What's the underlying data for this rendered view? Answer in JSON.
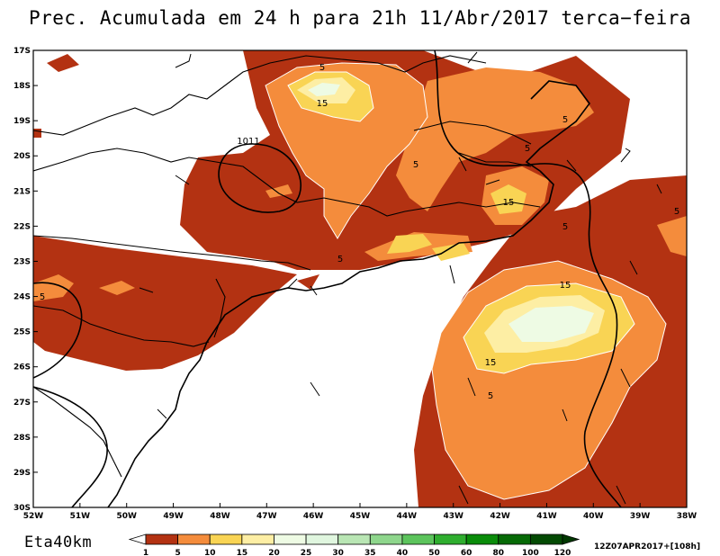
{
  "title": "Prec. Acumulada em 24 h para 21h 11/Abr/2017 terca−feira",
  "model": "Eta40km",
  "run": "12Z07APR2017+[108h]",
  "lat_labels": [
    "17S",
    "18S",
    "19S",
    "20S",
    "21S",
    "22S",
    "23S",
    "24S",
    "25S",
    "26S",
    "27S",
    "28S",
    "29S",
    "30S"
  ],
  "lon_labels": [
    "52W",
    "51W",
    "50W",
    "49W",
    "48W",
    "47W",
    "46W",
    "45W",
    "44W",
    "43W",
    "42W",
    "41W",
    "40W",
    "39W",
    "38W"
  ],
  "legend": {
    "ticks": [
      "1",
      "5",
      "10",
      "15",
      "20",
      "25",
      "30",
      "35",
      "40",
      "50",
      "60",
      "80",
      "100",
      "120"
    ],
    "colors": [
      "#ffffff",
      "#b33212",
      "#f48c3c",
      "#f9d454",
      "#fdeea4",
      "#eefbe4",
      "#e0f6df",
      "#b9e6b4",
      "#8ed68c",
      "#5cc45c",
      "#2fae2f",
      "#0a8c0a",
      "#066a06",
      "#034a03",
      "#013801"
    ]
  },
  "contour_labels": {
    "precip": [
      "5",
      "15",
      "5",
      "5",
      "15",
      "5",
      "5",
      "5",
      "15",
      "15",
      "5",
      "5",
      "5"
    ],
    "pressure": "1011"
  }
}
